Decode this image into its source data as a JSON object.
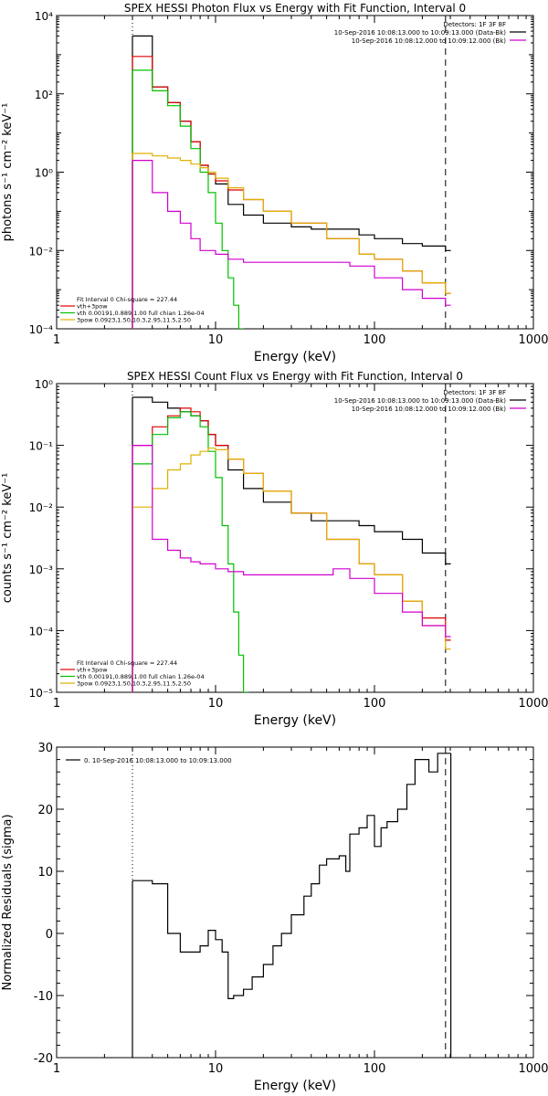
{
  "chart_data": [
    {
      "type": "line",
      "title": "SPEX HESSI Photon Flux vs Energy with Fit Function, Interval 0",
      "xlabel": "Energy (keV)",
      "ylabel": "photons s⁻¹ cm⁻² keV⁻¹",
      "xscale": "log",
      "yscale": "log",
      "xlim": [
        1,
        1000
      ],
      "ylim": [
        0.0001,
        10000
      ],
      "x_ticks": [
        "1",
        "10",
        "100",
        "1000"
      ],
      "y_ticks": [
        "10⁻⁴",
        "10⁻²",
        "10⁰",
        "10²",
        "10⁴"
      ],
      "legend_top_right": [
        {
          "text": "Detectors: 1F 3F 8F",
          "color": "#000000"
        },
        {
          "text": "10-Sep-2016 10:08:13.000 to 10:09:13.000 (Data-Bk)",
          "color": "#000000"
        },
        {
          "text": "10-Sep-2016 10:08:12.000 to 10:09:12.000 (Bk)",
          "color": "#d000d0"
        }
      ],
      "legend_bottom_left": [
        {
          "text": "Fit Interval 0   Chi-square = 227.44",
          "color": "#000000"
        },
        {
          "text": "vth+3pow",
          "color": "#e00000"
        },
        {
          "text": "vth 0.00191,0.889,1.00  full chian 1.26e-04",
          "color": "#00c000"
        },
        {
          "text": "3pow 0.0923,1.50,10.3,2.95,11.5,2.50",
          "color": "#e0b000"
        }
      ],
      "vlines_keV": [
        3,
        280
      ],
      "series": [
        {
          "name": "Data-Bk",
          "color": "#000000",
          "points": [
            [
              3,
              3000
            ],
            [
              4,
              150
            ],
            [
              5,
              60
            ],
            [
              6,
              20
            ],
            [
              7,
              6
            ],
            [
              8,
              1.5
            ],
            [
              9,
              0.9
            ],
            [
              10,
              0.5
            ],
            [
              12,
              0.15
            ],
            [
              15,
              0.08
            ],
            [
              20,
              0.05
            ],
            [
              30,
              0.04
            ],
            [
              40,
              0.035
            ],
            [
              60,
              0.035
            ],
            [
              80,
              0.025
            ],
            [
              100,
              0.02
            ],
            [
              150,
              0.015
            ],
            [
              200,
              0.013
            ],
            [
              280,
              0.01
            ]
          ]
        },
        {
          "name": "vth+3pow",
          "color": "#e00000",
          "points": [
            [
              3,
              900
            ],
            [
              4,
              150
            ],
            [
              5,
              60
            ],
            [
              6,
              20
            ],
            [
              7,
              6
            ],
            [
              8,
              1.5
            ],
            [
              9,
              0.9
            ],
            [
              10,
              0.6
            ],
            [
              12,
              0.35
            ],
            [
              15,
              0.2
            ],
            [
              20,
              0.1
            ],
            [
              30,
              0.05
            ],
            [
              50,
              0.02
            ],
            [
              80,
              0.008
            ],
            [
              100,
              0.006
            ],
            [
              150,
              0.003
            ],
            [
              200,
              0.0015
            ],
            [
              280,
              0.0008
            ]
          ]
        },
        {
          "name": "vth",
          "color": "#00c000",
          "points": [
            [
              3,
              400
            ],
            [
              4,
              120
            ],
            [
              5,
              50
            ],
            [
              6,
              15
            ],
            [
              7,
              4
            ],
            [
              8,
              1
            ],
            [
              9,
              0.3
            ],
            [
              10,
              0.05
            ],
            [
              11,
              0.01
            ],
            [
              12,
              0.002
            ],
            [
              13,
              0.0004
            ],
            [
              14,
              0.0001
            ]
          ]
        },
        {
          "name": "3pow",
          "color": "#e0b000",
          "points": [
            [
              3,
              3
            ],
            [
              4,
              2.6
            ],
            [
              5,
              2.3
            ],
            [
              6,
              2
            ],
            [
              7,
              1.6
            ],
            [
              8,
              1.3
            ],
            [
              9,
              1
            ],
            [
              10,
              0.7
            ],
            [
              12,
              0.4
            ],
            [
              15,
              0.2
            ],
            [
              20,
              0.1
            ],
            [
              30,
              0.05
            ],
            [
              50,
              0.02
            ],
            [
              80,
              0.008
            ],
            [
              100,
              0.006
            ],
            [
              150,
              0.003
            ],
            [
              200,
              0.0015
            ],
            [
              280,
              0.0008
            ]
          ]
        },
        {
          "name": "Bk",
          "color": "#d000d0",
          "points": [
            [
              3,
              2
            ],
            [
              4,
              0.3
            ],
            [
              5,
              0.1
            ],
            [
              6,
              0.05
            ],
            [
              7,
              0.02
            ],
            [
              8,
              0.01
            ],
            [
              10,
              0.008
            ],
            [
              12,
              0.006
            ],
            [
              15,
              0.005
            ],
            [
              20,
              0.005
            ],
            [
              30,
              0.005
            ],
            [
              40,
              0.005
            ],
            [
              55,
              0.005
            ],
            [
              70,
              0.004
            ],
            [
              100,
              0.002
            ],
            [
              150,
              0.001
            ],
            [
              200,
              0.0006
            ],
            [
              280,
              0.0004
            ]
          ]
        }
      ]
    },
    {
      "type": "line",
      "title": "SPEX HESSI Count Flux vs Energy with Fit Function, Interval 0",
      "xlabel": "Energy (keV)",
      "ylabel": "counts s⁻¹ cm⁻² keV⁻¹",
      "xscale": "log",
      "yscale": "log",
      "xlim": [
        1,
        1000
      ],
      "ylim": [
        1e-05,
        1
      ],
      "x_ticks": [
        "1",
        "10",
        "100",
        "1000"
      ],
      "y_ticks": [
        "10⁻⁵",
        "10⁻⁴",
        "10⁻³",
        "10⁻²",
        "10⁻¹",
        "10⁰"
      ],
      "legend_top_right": [
        {
          "text": "Detectors: 1F 3F 8F",
          "color": "#000000"
        },
        {
          "text": "10-Sep-2016 10:08:13.000 to 10:09:13.000 (Data-Bk)",
          "color": "#000000"
        },
        {
          "text": "10-Sep-2016 10:08:12.000 to 10:09:12.000 (Bk)",
          "color": "#d000d0"
        }
      ],
      "legend_bottom_left": [
        {
          "text": "Fit Interval 0   Chi-square = 227.44",
          "color": "#000000"
        },
        {
          "text": "vth+3pow",
          "color": "#e00000"
        },
        {
          "text": "vth 0.00191,0.889,1.00  full chian 1.26e-04",
          "color": "#00c000"
        },
        {
          "text": "3pow 0.0923,1.50,10.3,2.95,11.5,2.50",
          "color": "#e0b000"
        }
      ],
      "vlines_keV": [
        3,
        280
      ],
      "series": [
        {
          "name": "Data-Bk",
          "color": "#000000",
          "points": [
            [
              3,
              0.6
            ],
            [
              4,
              0.5
            ],
            [
              5,
              0.4
            ],
            [
              6,
              0.35
            ],
            [
              7,
              0.3
            ],
            [
              8,
              0.25
            ],
            [
              9,
              0.15
            ],
            [
              10,
              0.1
            ],
            [
              12,
              0.04
            ],
            [
              15,
              0.02
            ],
            [
              20,
              0.012
            ],
            [
              30,
              0.008
            ],
            [
              40,
              0.006
            ],
            [
              60,
              0.006
            ],
            [
              80,
              0.005
            ],
            [
              100,
              0.004
            ],
            [
              150,
              0.003
            ],
            [
              200,
              0.0018
            ],
            [
              280,
              0.0012
            ]
          ]
        },
        {
          "name": "vth+3pow",
          "color": "#e00000",
          "points": [
            [
              3,
              0.1
            ],
            [
              4,
              0.2
            ],
            [
              5,
              0.3
            ],
            [
              6,
              0.4
            ],
            [
              7,
              0.35
            ],
            [
              8,
              0.25
            ],
            [
              9,
              0.15
            ],
            [
              10,
              0.1
            ],
            [
              12,
              0.06
            ],
            [
              15,
              0.035
            ],
            [
              20,
              0.018
            ],
            [
              30,
              0.008
            ],
            [
              50,
              0.003
            ],
            [
              80,
              0.0012
            ],
            [
              100,
              0.0008
            ],
            [
              150,
              0.0003
            ],
            [
              200,
              0.00016
            ],
            [
              280,
              7e-05
            ]
          ]
        },
        {
          "name": "vth",
          "color": "#00c000",
          "points": [
            [
              3,
              0.05
            ],
            [
              4,
              0.15
            ],
            [
              5,
              0.28
            ],
            [
              6,
              0.35
            ],
            [
              7,
              0.3
            ],
            [
              8,
              0.2
            ],
            [
              9,
              0.08
            ],
            [
              10,
              0.03
            ],
            [
              11,
              0.005
            ],
            [
              12,
              0.0012
            ],
            [
              13,
              0.0002
            ],
            [
              14,
              4e-05
            ],
            [
              15,
              1e-05
            ]
          ]
        },
        {
          "name": "3pow",
          "color": "#e0b000",
          "points": [
            [
              3,
              0.01
            ],
            [
              4,
              0.02
            ],
            [
              5,
              0.04
            ],
            [
              6,
              0.05
            ],
            [
              7,
              0.07
            ],
            [
              8,
              0.08
            ],
            [
              9,
              0.09
            ],
            [
              10,
              0.085
            ],
            [
              12,
              0.06
            ],
            [
              15,
              0.035
            ],
            [
              20,
              0.018
            ],
            [
              30,
              0.008
            ],
            [
              50,
              0.003
            ],
            [
              80,
              0.0012
            ],
            [
              100,
              0.0008
            ],
            [
              150,
              0.0003
            ],
            [
              200,
              0.00012
            ],
            [
              280,
              5e-05
            ]
          ]
        },
        {
          "name": "Bk",
          "color": "#d000d0",
          "points": [
            [
              3,
              0.1
            ],
            [
              4,
              0.003
            ],
            [
              5,
              0.002
            ],
            [
              6,
              0.0015
            ],
            [
              7,
              0.0013
            ],
            [
              8,
              0.0012
            ],
            [
              10,
              0.001
            ],
            [
              12,
              0.0009
            ],
            [
              15,
              0.0008
            ],
            [
              20,
              0.0008
            ],
            [
              30,
              0.0008
            ],
            [
              45,
              0.0008
            ],
            [
              55,
              0.001
            ],
            [
              70,
              0.0007
            ],
            [
              100,
              0.0004
            ],
            [
              150,
              0.0002
            ],
            [
              200,
              0.00012
            ],
            [
              280,
              8e-05
            ]
          ]
        }
      ]
    },
    {
      "type": "line",
      "title": "",
      "xlabel": "Energy (keV)",
      "ylabel": "Normalized Residuals (sigma)",
      "xscale": "log",
      "yscale": "linear",
      "xlim": [
        1,
        1000
      ],
      "ylim": [
        -20,
        30
      ],
      "x_ticks": [
        "1",
        "10",
        "100",
        "1000"
      ],
      "y_ticks": [
        "-20",
        "-10",
        "0",
        "10",
        "20",
        "30"
      ],
      "legend_top_left": [
        {
          "text": "0. 10-Sep-2016 10:08:13.000 to 10:09:13.000",
          "color": "#000000"
        }
      ],
      "vlines_keV": [
        3,
        280
      ],
      "series": [
        {
          "name": "Residuals",
          "color": "#000000",
          "points": [
            [
              3,
              8.5
            ],
            [
              4,
              8
            ],
            [
              5,
              0
            ],
            [
              6,
              -3
            ],
            [
              7,
              -3
            ],
            [
              8,
              -2
            ],
            [
              9,
              0.5
            ],
            [
              10,
              -1
            ],
            [
              11,
              -3
            ],
            [
              12,
              -10.5
            ],
            [
              13,
              -10
            ],
            [
              15,
              -9
            ],
            [
              17,
              -7
            ],
            [
              20,
              -5
            ],
            [
              23,
              -2
            ],
            [
              26,
              0
            ],
            [
              30,
              3
            ],
            [
              33,
              3
            ],
            [
              36,
              6
            ],
            [
              40,
              8
            ],
            [
              45,
              11
            ],
            [
              50,
              12
            ],
            [
              55,
              12
            ],
            [
              60,
              12.5
            ],
            [
              66,
              10
            ],
            [
              70,
              16
            ],
            [
              80,
              17
            ],
            [
              90,
              19
            ],
            [
              100,
              14
            ],
            [
              110,
              17
            ],
            [
              120,
              18
            ],
            [
              140,
              20
            ],
            [
              160,
              24
            ],
            [
              180,
              28
            ],
            [
              200,
              28
            ],
            [
              220,
              26
            ],
            [
              250,
              29
            ],
            [
              280,
              29
            ]
          ]
        }
      ]
    }
  ]
}
